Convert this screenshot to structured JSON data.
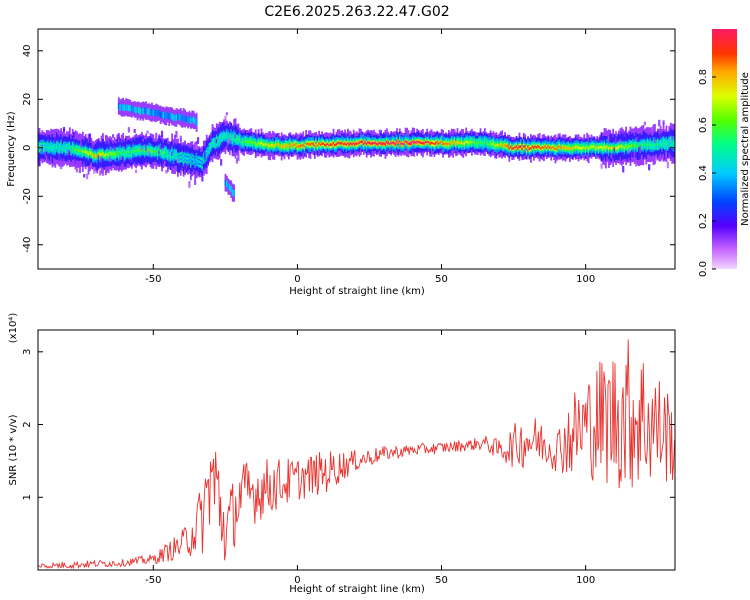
{
  "title": "C2E6.2025.263.22.47.G02",
  "chart_data": [
    {
      "type": "heatmap",
      "name": "spectrogram",
      "xlabel": "Height of straight line (km)",
      "ylabel": "Frequency (Hz)",
      "xlim": [
        -90,
        131
      ],
      "ylim": [
        -50,
        49
      ],
      "xticks": [
        -50,
        0,
        50,
        100
      ],
      "yticks": [
        -40,
        -20,
        0,
        20,
        40
      ],
      "colorbar": {
        "label": "Normalized spectral amplitude",
        "ticks": [
          "0.0",
          "0.2",
          "0.4",
          "0.6",
          "0.8"
        ],
        "range": [
          0,
          1
        ]
      },
      "ridge": [
        {
          "x": -90,
          "f": 0,
          "a": 0.5
        },
        {
          "x": -80,
          "f": 0,
          "a": 0.5
        },
        {
          "x": -70,
          "f": -3,
          "a": 0.8
        },
        {
          "x": -60,
          "f": -2,
          "a": 0.55
        },
        {
          "x": -50,
          "f": -1,
          "a": 0.6
        },
        {
          "x": -40,
          "f": -4,
          "a": 0.45
        },
        {
          "x": -33,
          "f": -6,
          "a": 0.4
        },
        {
          "x": -30,
          "f": 1,
          "a": 0.5
        },
        {
          "x": -25,
          "f": 5,
          "a": 0.5
        },
        {
          "x": -20,
          "f": 3,
          "a": 0.55
        },
        {
          "x": -10,
          "f": 1,
          "a": 0.75
        },
        {
          "x": 0,
          "f": 1,
          "a": 0.85
        },
        {
          "x": 20,
          "f": 2,
          "a": 0.95
        },
        {
          "x": 40,
          "f": 2,
          "a": 1.0
        },
        {
          "x": 55,
          "f": 2,
          "a": 0.8
        },
        {
          "x": 65,
          "f": 2,
          "a": 0.55
        },
        {
          "x": 75,
          "f": 0,
          "a": 0.95
        },
        {
          "x": 90,
          "f": 0,
          "a": 0.85
        },
        {
          "x": 100,
          "f": 0,
          "a": 0.7
        },
        {
          "x": 110,
          "f": 0,
          "a": 0.75
        },
        {
          "x": 120,
          "f": 1,
          "a": 0.55
        },
        {
          "x": 131,
          "f": 2,
          "a": 0.5
        }
      ],
      "secondary_features": [
        {
          "x_from": -62,
          "x_to": -35,
          "f_from": 17,
          "f_to": 11,
          "a": 0.3
        },
        {
          "x_from": -25,
          "x_to": -22,
          "f_from": -14,
          "f_to": -19,
          "a": 0.3
        }
      ]
    },
    {
      "type": "line",
      "name": "snr",
      "xlabel": "Height of straight line (km)",
      "ylabel": "SNR (10 * v/v)",
      "multiplier": "(x10⁴)",
      "xlim": [
        -90,
        131
      ],
      "ylim": [
        0,
        3.3
      ],
      "xticks": [
        -50,
        0,
        50,
        100
      ],
      "yticks": [
        1,
        2,
        3
      ],
      "color": "#e8332f",
      "envelope_x": [
        -90,
        -80,
        -60,
        -50,
        -40,
        -33,
        -30,
        -28,
        -25,
        -20,
        -10,
        0,
        10,
        20,
        30,
        40,
        50,
        60,
        65,
        70,
        75,
        80,
        85,
        90,
        95,
        100,
        105,
        110,
        115,
        120,
        125,
        131
      ],
      "envelope_y": [
        0.05,
        0.07,
        0.1,
        0.15,
        0.35,
        0.7,
        1.3,
        1.1,
        0.5,
        1.0,
        1.15,
        1.25,
        1.35,
        1.5,
        1.6,
        1.65,
        1.68,
        1.72,
        1.75,
        1.65,
        1.7,
        1.8,
        1.75,
        1.65,
        1.85,
        2.0,
        2.05,
        2.1,
        2.15,
        2.1,
        1.95,
        1.8
      ],
      "spread_y": [
        0.05,
        0.05,
        0.05,
        0.07,
        0.2,
        0.5,
        0.7,
        0.8,
        0.5,
        0.5,
        0.4,
        0.3,
        0.3,
        0.15,
        0.1,
        0.08,
        0.08,
        0.08,
        0.1,
        0.15,
        0.3,
        0.4,
        0.3,
        0.3,
        0.6,
        0.7,
        0.9,
        1.0,
        1.1,
        1.0,
        0.8,
        0.6
      ]
    }
  ]
}
